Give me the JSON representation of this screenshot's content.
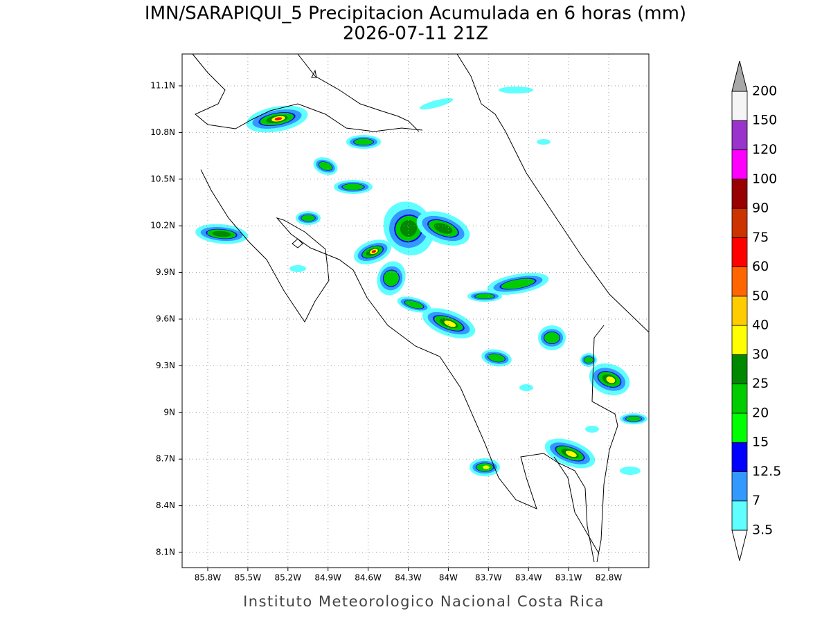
{
  "header": {
    "title": "IMN/SARAPIQUI_5 Precipitacion Acumulada en 6 horas (mm)",
    "subtitle": "2026-07-11 21Z"
  },
  "map": {
    "yticks": [
      "11.1N",
      "10.8N",
      "10.5N",
      "10.2N",
      "9.9N",
      "9.6N",
      "9.3N",
      "9N",
      "8.7N",
      "8.4N",
      "8.1N"
    ],
    "xticks": [
      "85.8W",
      "85.5W",
      "85.2W",
      "84.9W",
      "84.6W",
      "84.3W",
      "84W",
      "83.7W",
      "83.4W",
      "83.1W",
      "82.8W"
    ]
  },
  "colorbar": {
    "levels": [
      3.5,
      7,
      12.5,
      15,
      20,
      25,
      30,
      40,
      50,
      60,
      75,
      90,
      100,
      120,
      150,
      200
    ],
    "colors": [
      "#5fffff",
      "#3399ff",
      "#0000ff",
      "#00ff00",
      "#00cc00",
      "#008800",
      "#ffff00",
      "#ffcc00",
      "#ff6600",
      "#ff0000",
      "#cc3300",
      "#990000",
      "#ff00ff",
      "#9933cc",
      "#f5f5f5"
    ],
    "under_color": "#ffffff",
    "over_color": "#a8a8a8"
  },
  "footer": "Instituto Meteorologico Nacional Costa Rica"
}
